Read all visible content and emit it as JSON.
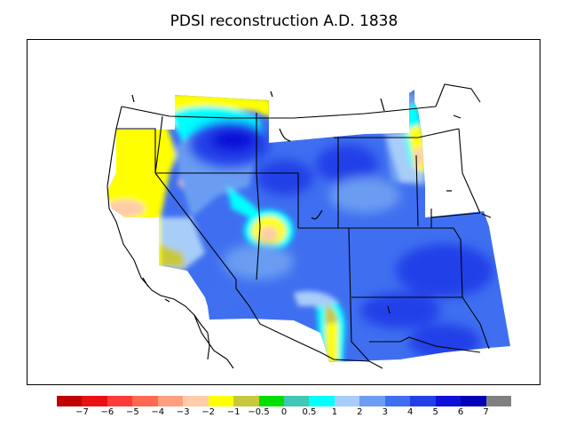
{
  "title": "PDSI reconstruction A.D. 1838",
  "legend": {
    "colors": [
      "#c00000",
      "#e81010",
      "#ff3a3a",
      "#ff6a50",
      "#ff9f80",
      "#ffccaa",
      "#ffff00",
      "#c8c83c",
      "#00e000",
      "#40c8b4",
      "#00ffff",
      "#a8cdf8",
      "#6b9df2",
      "#3f6ff0",
      "#2240e8",
      "#1010d8",
      "#0000b8",
      "#808080"
    ],
    "ticks": [
      "−7",
      "−6",
      "−5",
      "−4",
      "−3",
      "−2",
      "−1",
      "−0.5",
      "0",
      "0.5",
      "1",
      "2",
      "3",
      "4",
      "5",
      "6",
      "7"
    ]
  }
}
